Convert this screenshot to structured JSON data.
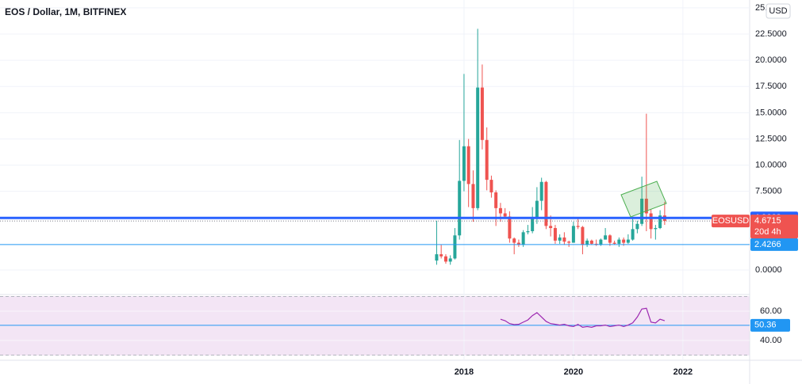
{
  "chart_data": [
    {
      "type": "candlestick",
      "title": "EOS / Dollar, 1M, BITFINEX",
      "currency": "USD",
      "symbol": "EOSUSD",
      "countdown": "20d 4h",
      "last_price": 4.6715,
      "up_color": "#26a69a",
      "down_color": "#ef5350",
      "x": [
        2017.5,
        2017.583,
        2017.667,
        2017.75,
        2017.833,
        2017.917,
        2018.0,
        2018.083,
        2018.167,
        2018.25,
        2018.333,
        2018.417,
        2018.5,
        2018.583,
        2018.667,
        2018.75,
        2018.833,
        2018.917,
        2019.0,
        2019.083,
        2019.167,
        2019.25,
        2019.333,
        2019.417,
        2019.5,
        2019.583,
        2019.667,
        2019.75,
        2019.833,
        2019.917,
        2020.0,
        2020.083,
        2020.167,
        2020.25,
        2020.333,
        2020.417,
        2020.5,
        2020.583,
        2020.667,
        2020.75,
        2020.833,
        2020.917,
        2021.0,
        2021.083,
        2021.167,
        2021.25,
        2021.333,
        2021.417,
        2021.5,
        2021.583,
        2021.667
      ],
      "open": [
        0.9,
        1.5,
        1.3,
        0.8,
        1.1,
        3.3,
        8.5,
        11.8,
        8.2,
        5.9,
        17.4,
        12.4,
        8.6,
        7.4,
        5.9,
        5.4,
        5.1,
        3.0,
        2.6,
        2.4,
        3.6,
        3.7,
        5.0,
        6.6,
        8.4,
        4.2,
        4.0,
        2.8,
        3.1,
        2.7,
        2.6,
        4.2,
        4.1,
        2.4,
        2.8,
        2.5,
        2.4,
        2.9,
        3.3,
        2.6,
        2.5,
        2.9,
        2.6,
        2.9,
        3.9,
        4.4,
        6.8,
        5.4,
        3.9,
        4.0,
        5.2
      ],
      "high": [
        4.7,
        2.4,
        1.5,
        1.4,
        4.0,
        12.4,
        18.7,
        12.5,
        9.5,
        23.0,
        19.6,
        13.6,
        9.0,
        7.6,
        6.4,
        5.9,
        5.6,
        3.1,
        2.9,
        3.8,
        4.3,
        6.0,
        7.9,
        8.8,
        8.5,
        5.2,
        4.3,
        3.4,
        3.6,
        2.8,
        4.6,
        5.0,
        4.2,
        3.0,
        2.9,
        2.9,
        3.0,
        4.0,
        3.4,
        2.8,
        3.1,
        3.1,
        3.4,
        4.9,
        4.7,
        8.9,
        14.9,
        5.8,
        4.3,
        5.7,
        6.5
      ],
      "low": [
        0.5,
        1.1,
        0.6,
        0.5,
        1.0,
        2.9,
        7.5,
        6.0,
        4.6,
        5.7,
        11.5,
        7.6,
        6.9,
        4.2,
        4.6,
        5.0,
        2.6,
        1.5,
        2.2,
        2.2,
        3.4,
        3.5,
        4.4,
        5.7,
        3.9,
        3.2,
        2.5,
        2.5,
        2.4,
        2.2,
        2.6,
        3.9,
        1.5,
        2.2,
        2.4,
        2.3,
        2.3,
        2.9,
        2.3,
        2.4,
        2.2,
        2.3,
        2.5,
        2.8,
        3.5,
        4.2,
        3.7,
        3.0,
        2.9,
        3.9,
        4.3
      ],
      "close": [
        1.5,
        1.3,
        0.8,
        1.1,
        3.3,
        8.5,
        11.8,
        8.2,
        5.9,
        17.4,
        12.4,
        8.6,
        7.4,
        5.9,
        5.4,
        5.1,
        3.0,
        2.6,
        2.4,
        3.6,
        3.7,
        5.0,
        6.6,
        8.4,
        4.2,
        4.0,
        2.8,
        3.1,
        2.7,
        2.6,
        4.2,
        4.1,
        2.4,
        2.8,
        2.5,
        2.4,
        2.9,
        3.3,
        2.6,
        2.5,
        2.9,
        2.6,
        2.9,
        3.9,
        4.4,
        6.8,
        5.4,
        3.9,
        4.0,
        5.2,
        4.6715
      ],
      "lines": [
        {
          "value": 4.9668,
          "color": "#2962ff",
          "width": 3
        },
        {
          "value": 2.4266,
          "color": "#2196f3",
          "width": 1
        }
      ],
      "xlim": [
        2009.52,
        2023.22
      ],
      "xticks": [
        2018,
        2020,
        2022
      ],
      "ylim": [
        -2.19,
        25.75
      ],
      "yticks": [
        {
          "value": 0,
          "label": "0.0000"
        },
        {
          "value": 7.5,
          "label": "7.5000"
        },
        {
          "value": 10,
          "label": "10.0000"
        },
        {
          "value": 12.5,
          "label": "12.5000"
        },
        {
          "value": 15,
          "label": "15.0000"
        },
        {
          "value": 17.5,
          "label": "17.5000"
        },
        {
          "value": 20,
          "label": "20.0000"
        },
        {
          "value": 22.5,
          "label": "22.5000"
        },
        {
          "value": 25,
          "label": "25.0000"
        }
      ],
      "grid": true
    },
    {
      "type": "line",
      "color": "#9c27b0",
      "x": [
        2018.667,
        2018.75,
        2018.833,
        2018.917,
        2019.0,
        2019.083,
        2019.167,
        2019.25,
        2019.333,
        2019.417,
        2019.5,
        2019.583,
        2019.667,
        2019.75,
        2019.833,
        2019.917,
        2020.0,
        2020.083,
        2020.167,
        2020.25,
        2020.333,
        2020.417,
        2020.5,
        2020.583,
        2020.667,
        2020.75,
        2020.833,
        2020.917,
        2021.0,
        2021.083,
        2021.167,
        2021.25,
        2021.333,
        2021.417,
        2021.5,
        2021.583,
        2021.667
      ],
      "values": [
        54.5,
        53.5,
        51.5,
        50.8,
        51,
        52.5,
        54,
        57,
        59,
        56,
        53,
        51.5,
        51,
        50.5,
        51,
        50,
        49.5,
        51,
        49,
        49.5,
        49,
        50,
        50,
        50.5,
        49.5,
        50,
        50.5,
        49.5,
        50.5,
        52,
        56,
        61.5,
        62,
        52.5,
        52,
        54.5,
        53.5
      ],
      "level": 50.36,
      "bands": [
        70,
        30
      ],
      "ylim": [
        29.7,
        70.3
      ],
      "yticks": [
        {
          "value": 60,
          "label": "60.00"
        },
        {
          "value": 40,
          "label": "40.00"
        }
      ]
    }
  ]
}
